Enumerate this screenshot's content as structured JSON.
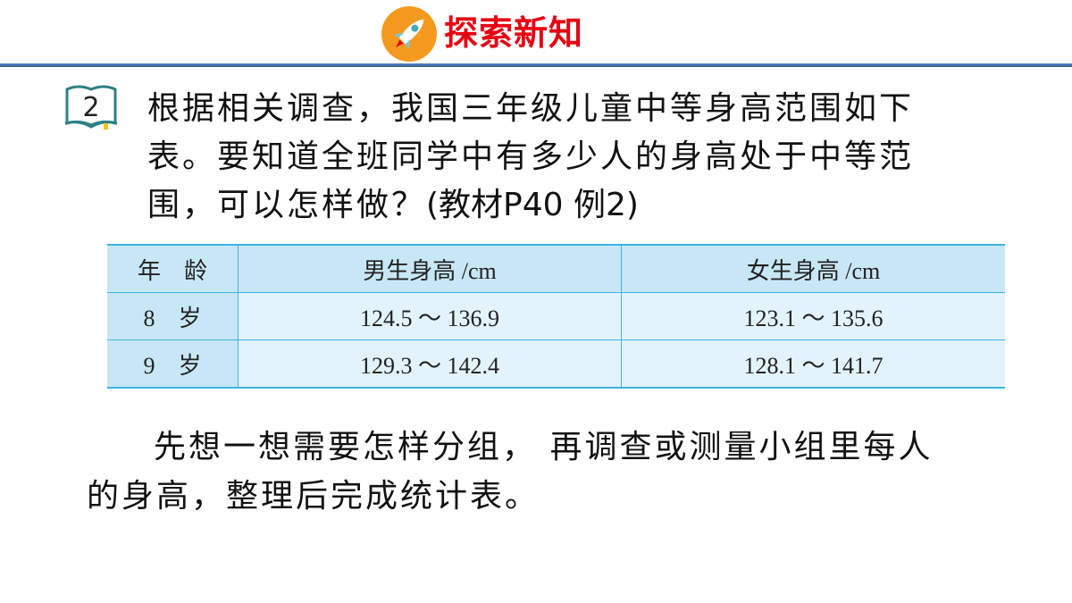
{
  "header": {
    "title": "探索新知",
    "icon": "rocket-icon",
    "title_color": "#e60012",
    "icon_bg": "#f39a1e"
  },
  "problem": {
    "number": "2",
    "text": "根据相关调查，我国三年级儿童中等身高范围如下表。要知道全班同学中有多少人的身高处于中等范围，可以怎样做？",
    "reference": "(教材P40 例2)"
  },
  "table": {
    "headers": [
      "年　龄",
      "男生身高 /cm",
      "女生身高 /cm"
    ],
    "rows": [
      [
        "8　岁",
        "124.5 ～ 136.9",
        "123.1 ～ 135.6"
      ],
      [
        "9　岁",
        "129.3 ～ 142.4",
        "128.1 ～ 141.7"
      ]
    ]
  },
  "hint": "先想一想需要怎样分组， 再调查或测量小组里每人的身高，整理后完成统计表。"
}
